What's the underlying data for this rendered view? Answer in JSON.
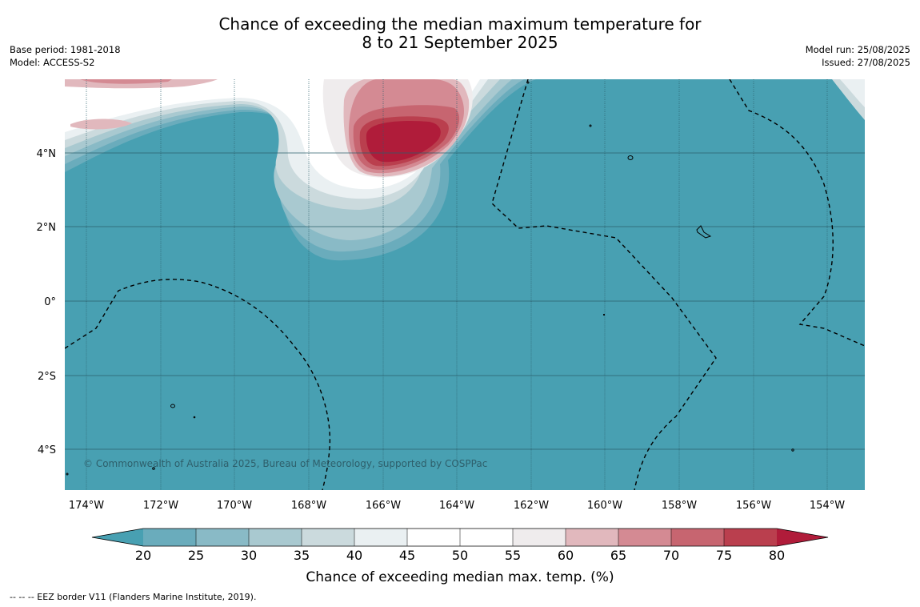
{
  "title": {
    "line1": "Chance of exceeding the median maximum temperature for",
    "line2": "8 to 21 September 2025"
  },
  "meta": {
    "base_period": "Base period: 1981-2018",
    "model": "Model: ACCESS-S2",
    "model_run": "Model run: 25/08/2025",
    "issued": "Issued: 27/08/2025"
  },
  "map": {
    "ocean_color": "#48a0b2",
    "x_ticks": [
      "174°W",
      "172°W",
      "170°W",
      "168°W",
      "166°W",
      "164°W",
      "162°W",
      "160°W",
      "158°W",
      "156°W",
      "154°W"
    ],
    "y_ticks": [
      "4°N",
      "2°N",
      "0°",
      "2°S",
      "4°S"
    ],
    "credit": "© Commonwealth of Australia 2025, Bureau of Meteorology, supported by COSPPac"
  },
  "colorbar": {
    "levels": [
      "20",
      "25",
      "30",
      "35",
      "40",
      "45",
      "50",
      "55",
      "60",
      "65",
      "70",
      "75",
      "80"
    ],
    "colors": [
      "#48a0b2",
      "#6aacbc",
      "#89bac6",
      "#a9c9d0",
      "#cbdadd",
      "#eaf0f2",
      "#ffffff",
      "#ffffff",
      "#efeced",
      "#e1b8bd",
      "#d48a93",
      "#c76570",
      "#ba3f4e",
      "#b01c3a"
    ],
    "label": "Chance of exceeding median max. temp. (%)"
  },
  "footnote": "--  --  -- EEZ border V11 (Flanders Marine Institute, 2019)."
}
